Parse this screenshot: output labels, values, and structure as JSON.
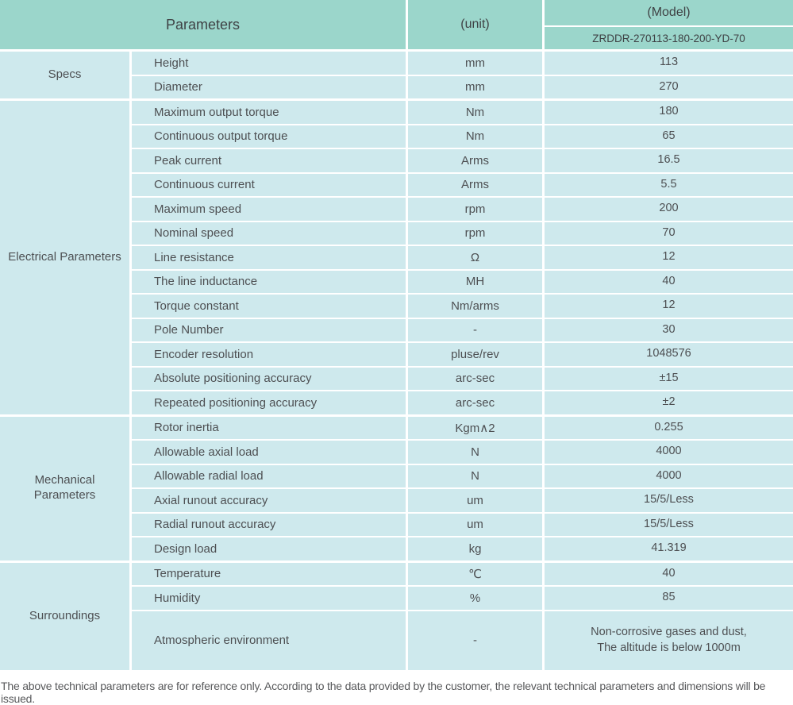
{
  "colors": {
    "header_bg": "#9bd6cb",
    "cell_bg": "#cee9ed",
    "text": "#4d4f52",
    "border": "#ffffff",
    "footer_text": "#58595b"
  },
  "header": {
    "parameters_label": "Parameters",
    "unit_label": "(unit)",
    "model_label": "(Model)",
    "model_code": "ZRDDR-270113-180-200-YD-70"
  },
  "sections": [
    {
      "label": "Specs",
      "rows": [
        {
          "parameter": "Height",
          "unit": "mm",
          "value": "113"
        },
        {
          "parameter": "Diameter",
          "unit": "mm",
          "value": "270"
        }
      ]
    },
    {
      "label": "Electrical Parameters",
      "rows": [
        {
          "parameter": "Maximum output torque",
          "unit": "Nm",
          "value": "180"
        },
        {
          "parameter": "Continuous output torque",
          "unit": "Nm",
          "value": "65"
        },
        {
          "parameter": "Peak current",
          "unit": "Arms",
          "value": "16.5"
        },
        {
          "parameter": "Continuous current",
          "unit": "Arms",
          "value": "5.5"
        },
        {
          "parameter": "Maximum speed",
          "unit": "rpm",
          "value": "200"
        },
        {
          "parameter": "Nominal speed",
          "unit": "rpm",
          "value": "70"
        },
        {
          "parameter": "Line resistance",
          "unit": "Ω",
          "value": "12"
        },
        {
          "parameter": "The line inductance",
          "unit": "MH",
          "value": "40"
        },
        {
          "parameter": "Torque constant",
          "unit": "Nm/arms",
          "value": "12"
        },
        {
          "parameter": "Pole Number",
          "unit": "-",
          "value": "30"
        },
        {
          "parameter": "Encoder resolution",
          "unit": "pluse/rev",
          "value": "1048576"
        },
        {
          "parameter": "Absolute positioning accuracy",
          "unit": "arc-sec",
          "value": "±15"
        },
        {
          "parameter": "Repeated positioning accuracy",
          "unit": "arc-sec",
          "value": "±2"
        }
      ]
    },
    {
      "label": "Mechanical Parameters",
      "rows": [
        {
          "parameter": "Rotor inertia",
          "unit": "Kgm∧2",
          "value": "0.255"
        },
        {
          "parameter": "Allowable axial load",
          "unit": "N",
          "value": "4000"
        },
        {
          "parameter": "Allowable radial load",
          "unit": "N",
          "value": "4000"
        },
        {
          "parameter": "Axial runout accuracy",
          "unit": "um",
          "value": "15/5/Less"
        },
        {
          "parameter": "Radial runout accuracy",
          "unit": "um",
          "value": "15/5/Less"
        },
        {
          "parameter": "Design load",
          "unit": "kg",
          "value": "41.319"
        }
      ]
    },
    {
      "label": "Surroundings",
      "rows": [
        {
          "parameter": "Temperature",
          "unit": "℃",
          "value": "40"
        },
        {
          "parameter": "Humidity",
          "unit": "%",
          "value": "85"
        },
        {
          "parameter": "Atmospheric environment",
          "unit": "-",
          "value": "Non-corrosive gases and dust,\nThe altitude is below 1000m",
          "tall": true
        }
      ]
    }
  ],
  "footer_note": "The above technical parameters are for reference only. According to the data provided by the customer, the relevant technical parameters and dimensions will be issued."
}
